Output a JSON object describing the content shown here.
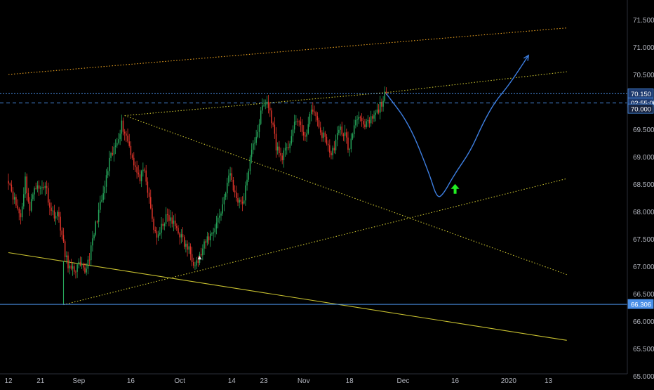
{
  "chart_data": {
    "type": "candlestick",
    "title": "",
    "xlabel": "",
    "ylabel": "",
    "ylim": [
      65.0,
      71.8
    ],
    "y_ticks": [
      "71.500",
      "71.000",
      "70.500",
      "70.000",
      "69.500",
      "69.000",
      "68.500",
      "68.000",
      "67.500",
      "67.000",
      "66.500",
      "66.000",
      "65.500",
      "65.000"
    ],
    "x_ticks": [
      "12",
      "21",
      "Sep",
      "16",
      "Oct",
      "14",
      "23",
      "Nov",
      "18",
      "Dec",
      "16",
      "2020",
      "13"
    ],
    "x_tick_values": [
      0,
      21,
      46,
      80,
      112,
      146,
      167,
      193,
      223,
      258,
      292,
      327,
      353
    ],
    "grid": false,
    "colors": {
      "background": "#000000",
      "up": "#26a65b",
      "down": "#e0352b",
      "axis_text": "#b2b5be",
      "trend_yellow": "#c9c230",
      "dotted_orange": "#e8a020",
      "hline_blue": "#4a8fe7",
      "path_blue": "#3d7ee0",
      "arrow_green": "#22ee22"
    },
    "last_bar_index": 247,
    "candles_anchor": [
      [
        0,
        68.6
      ],
      [
        4,
        68.2
      ],
      [
        8,
        67.9
      ],
      [
        11,
        68.6
      ],
      [
        14,
        68.0
      ],
      [
        17,
        68.5
      ],
      [
        20,
        68.4
      ],
      [
        24,
        68.5
      ],
      [
        28,
        68.0
      ],
      [
        33,
        67.9
      ],
      [
        37,
        67.2
      ],
      [
        41,
        66.9
      ],
      [
        46,
        67.0
      ],
      [
        50,
        66.9
      ],
      [
        54,
        67.3
      ],
      [
        58,
        67.9
      ],
      [
        62,
        68.3
      ],
      [
        66,
        68.9
      ],
      [
        70,
        69.2
      ],
      [
        74,
        69.6
      ],
      [
        78,
        69.3
      ],
      [
        81,
        69.0
      ],
      [
        85,
        68.6
      ],
      [
        89,
        68.7
      ],
      [
        92,
        68.2
      ],
      [
        95,
        67.7
      ],
      [
        98,
        67.5
      ],
      [
        101,
        67.8
      ],
      [
        104,
        67.9
      ],
      [
        107,
        67.8
      ],
      [
        110,
        67.7
      ],
      [
        112,
        67.6
      ],
      [
        115,
        67.4
      ],
      [
        118,
        67.3
      ],
      [
        121,
        67.1
      ],
      [
        124,
        67.1
      ],
      [
        127,
        67.3
      ],
      [
        130,
        67.5
      ],
      [
        133,
        67.6
      ],
      [
        136,
        67.8
      ],
      [
        139,
        68.0
      ],
      [
        142,
        68.4
      ],
      [
        145,
        68.7
      ],
      [
        148,
        68.3
      ],
      [
        151,
        68.2
      ],
      [
        154,
        68.2
      ],
      [
        157,
        68.8
      ],
      [
        160,
        69.2
      ],
      [
        163,
        69.5
      ],
      [
        166,
        69.9
      ],
      [
        169,
        70.0
      ],
      [
        172,
        69.7
      ],
      [
        175,
        69.2
      ],
      [
        178,
        69.0
      ],
      [
        182,
        69.1
      ],
      [
        186,
        69.5
      ],
      [
        190,
        69.7
      ],
      [
        193,
        69.3
      ],
      [
        196,
        69.6
      ],
      [
        199,
        69.9
      ],
      [
        202,
        69.6
      ],
      [
        205,
        69.4
      ],
      [
        208,
        69.3
      ],
      [
        211,
        69.0
      ],
      [
        214,
        69.3
      ],
      [
        217,
        69.5
      ],
      [
        220,
        69.4
      ],
      [
        223,
        69.1
      ],
      [
        226,
        69.6
      ],
      [
        229,
        69.8
      ],
      [
        232,
        69.5
      ],
      [
        235,
        69.6
      ],
      [
        238,
        69.7
      ],
      [
        241,
        69.8
      ],
      [
        244,
        70.0
      ],
      [
        247,
        70.15
      ]
    ],
    "lines": [
      {
        "name": "upper-dotted-trend",
        "style": "dotted",
        "color": "#e8a020",
        "points": [
          [
            0,
            70.5
          ],
          [
            365,
            71.35
          ]
        ]
      },
      {
        "name": "upper-channel-line",
        "style": "dotted",
        "color": "#c9c230",
        "points": [
          [
            76,
            69.75
          ],
          [
            250,
            70.18
          ],
          [
            365,
            70.55
          ]
        ]
      },
      {
        "name": "descending-trend",
        "style": "dotted",
        "color": "#c9c230",
        "points": [
          [
            76,
            69.75
          ],
          [
            365,
            66.85
          ]
        ]
      },
      {
        "name": "ascending-trend",
        "style": "dotted",
        "color": "#c9c230",
        "points": [
          [
            36,
            66.3
          ],
          [
            365,
            68.6
          ]
        ]
      },
      {
        "name": "long-descending-support",
        "style": "solid",
        "color": "#c9c230",
        "points": [
          [
            0,
            67.25
          ],
          [
            365,
            65.65
          ]
        ]
      },
      {
        "name": "vertical-marker",
        "style": "solid",
        "color": "#26a65b",
        "points": [
          [
            36,
            66.3
          ],
          [
            36,
            67.1
          ]
        ]
      }
    ],
    "hlines": [
      {
        "name": "resistance",
        "value": 70.15,
        "style": "dotted",
        "label": "70.150"
      },
      {
        "name": "support",
        "value": 66.306,
        "style": "solid",
        "label": "66.306"
      },
      {
        "name": "current",
        "value": 69.98,
        "style": "dashed",
        "label": "02:55:00"
      }
    ],
    "highlight_labels": [
      "70.150",
      "02:55:00",
      "70.000",
      "66.306"
    ],
    "projection_path": [
      [
        247,
        70.15
      ],
      [
        262,
        69.6
      ],
      [
        275,
        68.7
      ],
      [
        280,
        68.25
      ],
      [
        284,
        68.3
      ],
      [
        292,
        68.7
      ],
      [
        302,
        69.1
      ],
      [
        310,
        69.6
      ],
      [
        318,
        70.0
      ],
      [
        327,
        70.3
      ],
      [
        340,
        70.85
      ]
    ],
    "up_arrow_at": [
      292,
      68.4
    ]
  }
}
